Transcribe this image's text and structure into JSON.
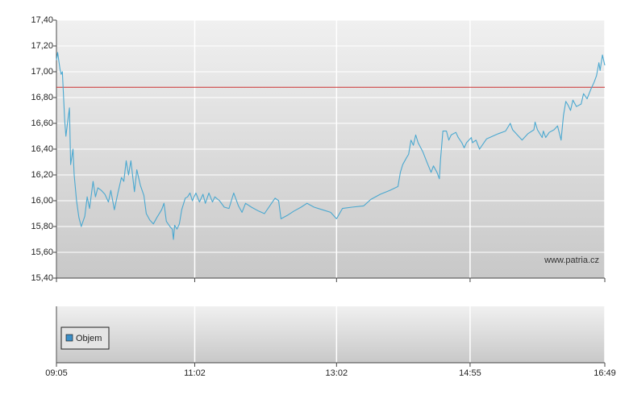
{
  "chart_data": {
    "type": "line",
    "x": [
      "09:05",
      "09:06",
      "09:08",
      "09:09",
      "09:10",
      "09:12",
      "09:13",
      "09:15",
      "09:16",
      "09:17",
      "09:19",
      "09:20",
      "09:22",
      "09:24",
      "09:26",
      "09:29",
      "09:31",
      "09:33",
      "09:36",
      "09:38",
      "09:40",
      "09:43",
      "09:46",
      "09:49",
      "09:51",
      "09:54",
      "09:57",
      "10:00",
      "10:02",
      "10:04",
      "10:06",
      "10:08",
      "10:11",
      "10:13",
      "10:16",
      "10:19",
      "10:21",
      "10:24",
      "10:27",
      "10:30",
      "10:34",
      "10:36",
      "10:38",
      "10:41",
      "10:43",
      "10:44",
      "10:45",
      "10:47",
      "10:49",
      "10:51",
      "10:54",
      "10:56",
      "10:58",
      "11:00",
      "11:03",
      "11:06",
      "11:09",
      "11:11",
      "11:14",
      "11:17",
      "11:19",
      "11:23",
      "11:27",
      "11:31",
      "11:35",
      "11:39",
      "11:42",
      "11:45",
      "11:50",
      "11:56",
      "12:01",
      "12:07",
      "12:10",
      "12:13",
      "12:15",
      "12:21",
      "12:26",
      "12:32",
      "12:37",
      "12:43",
      "12:50",
      "12:57",
      "13:02",
      "13:07",
      "13:15",
      "13:25",
      "13:31",
      "13:39",
      "13:47",
      "13:54",
      "13:56",
      "13:58",
      "14:01",
      "14:03",
      "14:05",
      "14:07",
      "14:09",
      "14:11",
      "14:15",
      "14:18",
      "14:22",
      "14:24",
      "14:27",
      "14:29",
      "14:30",
      "14:32",
      "14:35",
      "14:37",
      "14:39",
      "14:43",
      "14:45",
      "14:48",
      "14:50",
      "14:52",
      "14:56",
      "14:57",
      "15:00",
      "15:03",
      "15:06",
      "15:09",
      "15:14",
      "15:19",
      "15:25",
      "15:29",
      "15:31",
      "15:35",
      "15:39",
      "15:44",
      "15:49",
      "15:50",
      "15:52",
      "15:56",
      "15:57",
      "15:59",
      "16:02",
      "16:06",
      "16:09",
      "16:12",
      "16:14",
      "16:16",
      "16:18",
      "16:20",
      "16:22",
      "16:25",
      "16:29",
      "16:31",
      "16:34",
      "16:37",
      "16:40",
      "16:42",
      "16:44",
      "16:45",
      "16:47",
      "16:49"
    ],
    "values": [
      17.09,
      17.15,
      17.02,
      16.98,
      17.0,
      16.62,
      16.5,
      16.65,
      16.72,
      16.28,
      16.4,
      16.2,
      16.0,
      15.87,
      15.8,
      15.88,
      16.03,
      15.94,
      16.15,
      16.03,
      16.1,
      16.08,
      16.05,
      15.99,
      16.08,
      15.93,
      16.06,
      16.18,
      16.15,
      16.31,
      16.2,
      16.31,
      16.07,
      16.24,
      16.12,
      16.04,
      15.9,
      15.85,
      15.82,
      15.87,
      15.93,
      15.98,
      15.84,
      15.8,
      15.78,
      15.7,
      15.81,
      15.78,
      15.82,
      15.93,
      16.02,
      16.03,
      16.06,
      16.0,
      16.06,
      15.99,
      16.05,
      15.98,
      16.06,
      15.99,
      16.03,
      16.0,
      15.95,
      15.94,
      16.06,
      15.96,
      15.91,
      15.98,
      15.95,
      15.92,
      15.9,
      15.98,
      16.02,
      16.0,
      15.86,
      15.89,
      15.92,
      15.95,
      15.98,
      15.95,
      15.93,
      15.91,
      15.86,
      15.94,
      15.95,
      15.96,
      16.01,
      16.05,
      16.08,
      16.11,
      16.22,
      16.28,
      16.33,
      16.36,
      16.47,
      16.43,
      16.51,
      16.45,
      16.38,
      16.31,
      16.22,
      16.27,
      16.22,
      16.17,
      16.32,
      16.54,
      16.54,
      16.47,
      16.51,
      16.53,
      16.49,
      16.45,
      16.41,
      16.45,
      16.49,
      16.45,
      16.47,
      16.4,
      16.44,
      16.48,
      16.5,
      16.52,
      16.54,
      16.6,
      16.55,
      16.51,
      16.47,
      16.52,
      16.55,
      16.61,
      16.55,
      16.49,
      16.54,
      16.49,
      16.53,
      16.55,
      16.58,
      16.47,
      16.66,
      16.77,
      16.74,
      16.7,
      16.78,
      16.73,
      16.75,
      16.83,
      16.79,
      16.86,
      16.92,
      16.97,
      17.07,
      17.01,
      17.13,
      17.05
    ],
    "color": "#4aa8d0",
    "xlim": [
      "09:05",
      "16:49"
    ],
    "xticks": [
      "09:05",
      "11:02",
      "13:02",
      "14:55",
      "16:49"
    ],
    "ylim": [
      15.4,
      17.4
    ],
    "yticks": [
      {
        "value": 15.4,
        "label": "15,40"
      },
      {
        "value": 15.6,
        "label": "15,60"
      },
      {
        "value": 15.8,
        "label": "15,80"
      },
      {
        "value": 16.0,
        "label": "16,00"
      },
      {
        "value": 16.2,
        "label": "16,20"
      },
      {
        "value": 16.4,
        "label": "16,40"
      },
      {
        "value": 16.6,
        "label": "16,60"
      },
      {
        "value": 16.8,
        "label": "16,80"
      },
      {
        "value": 17.0,
        "label": "17,00"
      },
      {
        "value": 17.2,
        "label": "17,20"
      },
      {
        "value": 17.4,
        "label": "17,40"
      }
    ],
    "grid": true,
    "reference_line": 16.88,
    "reference_color": "#cc3333",
    "source": "www.patria.cz"
  },
  "volume_panel": {
    "legend": "Objem",
    "color": "#3a8fc8"
  }
}
